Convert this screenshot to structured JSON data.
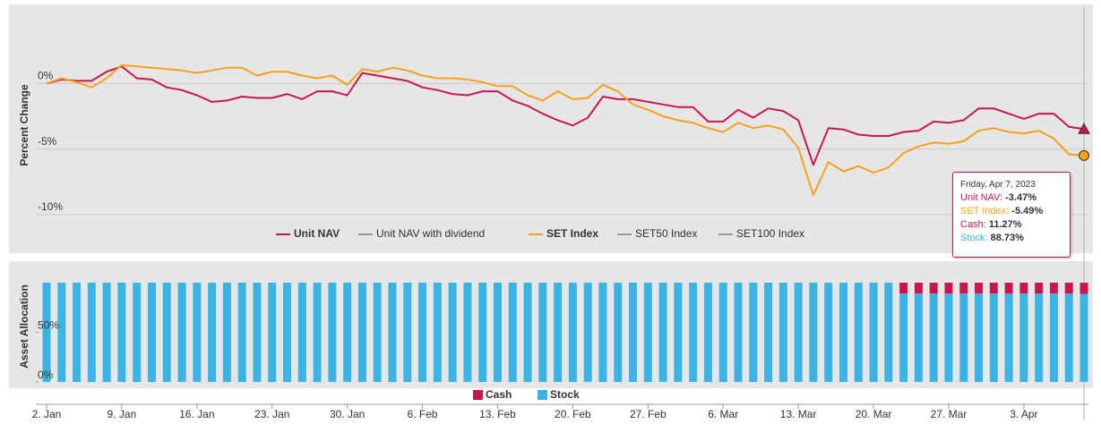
{
  "chart_data": [
    {
      "type": "line",
      "y_axis_title": "Percent Change",
      "ylim": [
        -10,
        5
      ],
      "yticks": [
        {
          "value": 0,
          "label": "0%"
        },
        {
          "value": -5,
          "label": "-5%"
        },
        {
          "value": -10,
          "label": "-10%"
        }
      ],
      "grid": true,
      "x": [
        "2023-01-02",
        "2023-01-03",
        "2023-01-04",
        "2023-01-05",
        "2023-01-06",
        "2023-01-09",
        "2023-01-10",
        "2023-01-11",
        "2023-01-12",
        "2023-01-13",
        "2023-01-16",
        "2023-01-17",
        "2023-01-18",
        "2023-01-19",
        "2023-01-20",
        "2023-01-23",
        "2023-01-24",
        "2023-01-25",
        "2023-01-26",
        "2023-01-27",
        "2023-01-30",
        "2023-01-31",
        "2023-02-01",
        "2023-02-02",
        "2023-02-03",
        "2023-02-06",
        "2023-02-07",
        "2023-02-08",
        "2023-02-09",
        "2023-02-10",
        "2023-02-13",
        "2023-02-14",
        "2023-02-15",
        "2023-02-16",
        "2023-02-17",
        "2023-02-20",
        "2023-02-21",
        "2023-02-22",
        "2023-02-23",
        "2023-02-24",
        "2023-02-27",
        "2023-02-28",
        "2023-03-01",
        "2023-03-02",
        "2023-03-03",
        "2023-03-06",
        "2023-03-07",
        "2023-03-08",
        "2023-03-09",
        "2023-03-10",
        "2023-03-13",
        "2023-03-14",
        "2023-03-15",
        "2023-03-16",
        "2023-03-17",
        "2023-03-20",
        "2023-03-21",
        "2023-03-22",
        "2023-03-23",
        "2023-03-24",
        "2023-03-27",
        "2023-03-28",
        "2023-03-29",
        "2023-03-30",
        "2023-03-31",
        "2023-04-03",
        "2023-04-04",
        "2023-04-05",
        "2023-04-06",
        "2023-04-07"
      ],
      "series": [
        {
          "name": "Unit NAV",
          "color": "#c8174f",
          "marker": "triangle",
          "visible": true,
          "values": [
            0,
            0.3,
            0.2,
            0.2,
            0.9,
            1.3,
            0.4,
            0.3,
            -0.3,
            -0.5,
            -0.9,
            -1.4,
            -1.3,
            -1.0,
            -1.1,
            -1.1,
            -0.8,
            -1.2,
            -0.6,
            -0.6,
            -0.9,
            0.8,
            0.6,
            0.4,
            0.2,
            -0.3,
            -0.5,
            -0.8,
            -0.9,
            -0.6,
            -0.6,
            -1.3,
            -1.7,
            -2.3,
            -2.8,
            -3.2,
            -2.6,
            -1.0,
            -1.2,
            -1.2,
            -1.4,
            -1.6,
            -1.8,
            -1.8,
            -2.9,
            -2.9,
            -2.0,
            -2.6,
            -1.9,
            -2.1,
            -2.8,
            -6.2,
            -3.4,
            -3.5,
            -3.9,
            -4.0,
            -4.0,
            -3.7,
            -3.6,
            -2.9,
            -3.0,
            -2.8,
            -1.9,
            -1.9,
            -2.3,
            -2.7,
            -2.3,
            -2.3,
            -3.3,
            -3.47
          ]
        },
        {
          "name": "Unit NAV with dividend",
          "color": "#999999",
          "visible": false
        },
        {
          "name": "SET Index",
          "color": "#f7a11a",
          "marker": "circle",
          "visible": true,
          "values": [
            0,
            0.4,
            0.1,
            -0.3,
            0.4,
            1.4,
            1.3,
            1.2,
            1.1,
            1.0,
            0.8,
            1.0,
            1.2,
            1.2,
            0.6,
            0.9,
            0.9,
            0.6,
            0.4,
            0.6,
            -0.1,
            1.1,
            0.9,
            1.2,
            1.0,
            0.6,
            0.4,
            0.4,
            0.3,
            0.1,
            -0.2,
            -0.2,
            -0.9,
            -1.3,
            -0.6,
            -1.2,
            -1.1,
            -0.1,
            -0.6,
            -1.6,
            -2.0,
            -2.5,
            -2.8,
            -3.0,
            -3.4,
            -3.7,
            -3.0,
            -3.4,
            -3.2,
            -3.5,
            -4.9,
            -8.5,
            -6.0,
            -6.7,
            -6.3,
            -6.8,
            -6.4,
            -5.3,
            -4.8,
            -4.5,
            -4.6,
            -4.4,
            -3.6,
            -3.4,
            -3.7,
            -3.8,
            -3.6,
            -4.2,
            -5.4,
            -5.49
          ]
        },
        {
          "name": "SET50 Index",
          "color": "#999999",
          "visible": false
        },
        {
          "name": "SET100 Index",
          "color": "#999999",
          "visible": false
        }
      ],
      "tooltip": {
        "title": "Friday, Apr 7, 2023",
        "rows": [
          {
            "label": "Unit NAV:",
            "value": "-3.47%",
            "color": "#c8174f"
          },
          {
            "label": "SET Index:",
            "value": "-5.49%",
            "color": "#f7a11a"
          },
          {
            "label": "Cash:",
            "value": "11.27%",
            "color": "#c8174f"
          },
          {
            "label": "Stock:",
            "value": "88.73%",
            "color": "#3ab4e5"
          }
        ]
      }
    },
    {
      "type": "bar",
      "stacked": true,
      "y_axis_title": "Asset Allocation",
      "ylim": [
        0,
        100
      ],
      "yticks": [
        {
          "value": 0,
          "label": "0%"
        },
        {
          "value": 50,
          "label": "50%"
        }
      ],
      "x": [
        "2023-01-02",
        "2023-01-03",
        "2023-01-04",
        "2023-01-05",
        "2023-01-06",
        "2023-01-09",
        "2023-01-10",
        "2023-01-11",
        "2023-01-12",
        "2023-01-13",
        "2023-01-16",
        "2023-01-17",
        "2023-01-18",
        "2023-01-19",
        "2023-01-20",
        "2023-01-23",
        "2023-01-24",
        "2023-01-25",
        "2023-01-26",
        "2023-01-27",
        "2023-01-30",
        "2023-01-31",
        "2023-02-01",
        "2023-02-02",
        "2023-02-03",
        "2023-02-06",
        "2023-02-07",
        "2023-02-08",
        "2023-02-09",
        "2023-02-10",
        "2023-02-13",
        "2023-02-14",
        "2023-02-15",
        "2023-02-16",
        "2023-02-17",
        "2023-02-20",
        "2023-02-21",
        "2023-02-22",
        "2023-02-23",
        "2023-02-24",
        "2023-02-27",
        "2023-02-28",
        "2023-03-01",
        "2023-03-02",
        "2023-03-03",
        "2023-03-06",
        "2023-03-07",
        "2023-03-08",
        "2023-03-09",
        "2023-03-10",
        "2023-03-13",
        "2023-03-14",
        "2023-03-15",
        "2023-03-16",
        "2023-03-17",
        "2023-03-20",
        "2023-03-21",
        "2023-03-22",
        "2023-03-23",
        "2023-03-24",
        "2023-03-27",
        "2023-03-28",
        "2023-03-29",
        "2023-03-30",
        "2023-03-31",
        "2023-04-03",
        "2023-04-04",
        "2023-04-05",
        "2023-04-06",
        "2023-04-07"
      ],
      "xticks": [
        {
          "value": "2023-01-02",
          "label": "2. Jan"
        },
        {
          "value": "2023-01-09",
          "label": "9. Jan"
        },
        {
          "value": "2023-01-16",
          "label": "16. Jan"
        },
        {
          "value": "2023-01-23",
          "label": "23. Jan"
        },
        {
          "value": "2023-01-30",
          "label": "30. Jan"
        },
        {
          "value": "2023-02-06",
          "label": "6. Feb"
        },
        {
          "value": "2023-02-13",
          "label": "13. Feb"
        },
        {
          "value": "2023-02-20",
          "label": "20. Feb"
        },
        {
          "value": "2023-02-27",
          "label": "27. Feb"
        },
        {
          "value": "2023-03-06",
          "label": "6. Mar"
        },
        {
          "value": "2023-03-13",
          "label": "13. Mar"
        },
        {
          "value": "2023-03-20",
          "label": "20. Mar"
        },
        {
          "value": "2023-03-27",
          "label": "27. Mar"
        },
        {
          "value": "2023-04-03",
          "label": "3. Apr"
        }
      ],
      "series": [
        {
          "name": "Cash",
          "color": "#c8174f",
          "values": [
            0,
            0,
            0,
            0,
            0,
            0,
            0,
            0,
            0,
            0,
            0,
            0,
            0,
            0,
            0,
            0,
            0,
            0,
            0,
            0,
            0,
            0,
            0,
            0,
            0,
            0,
            0,
            0,
            0,
            0,
            0,
            0,
            0,
            0,
            0,
            0,
            0,
            0,
            0,
            0,
            0,
            0,
            0,
            0,
            0,
            0,
            0,
            0,
            0,
            0,
            0,
            0,
            0,
            0,
            0,
            0,
            0,
            11,
            11,
            11,
            11,
            11,
            11,
            11,
            11,
            11,
            11,
            11,
            11,
            11.27
          ]
        },
        {
          "name": "Stock",
          "color": "#3ab4e5",
          "values": [
            100,
            100,
            100,
            100,
            100,
            100,
            100,
            100,
            100,
            100,
            100,
            100,
            100,
            100,
            100,
            100,
            100,
            100,
            100,
            100,
            100,
            100,
            100,
            100,
            100,
            100,
            100,
            100,
            100,
            100,
            100,
            100,
            100,
            100,
            100,
            100,
            100,
            100,
            100,
            100,
            100,
            100,
            100,
            100,
            100,
            100,
            100,
            100,
            100,
            100,
            100,
            100,
            100,
            100,
            100,
            100,
            100,
            89,
            89,
            89,
            89,
            89,
            89,
            89,
            89,
            89,
            89,
            89,
            89,
            88.73
          ]
        }
      ]
    }
  ]
}
